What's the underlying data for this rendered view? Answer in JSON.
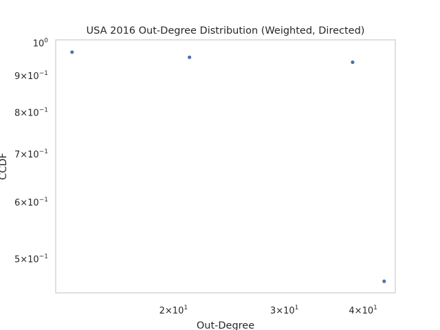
{
  "chart_data": {
    "type": "scatter",
    "title": "USA 2016 Out-Degree Distribution (Weighted, Directed)",
    "xlabel": "Out-Degree",
    "ylabel": "CCDF",
    "x_scale": "log",
    "y_scale": "log",
    "grid": false,
    "xlim": [
      13,
      45
    ],
    "ylim": [
      0.448,
      1.01
    ],
    "x_ticks": [
      {
        "value": 20,
        "mantissa": "2",
        "base": "10",
        "exp": "1"
      },
      {
        "value": 30,
        "mantissa": "3",
        "base": "10",
        "exp": "1"
      },
      {
        "value": 40,
        "mantissa": "4",
        "base": "10",
        "exp": "1"
      }
    ],
    "y_ticks": [
      {
        "value": 0.5,
        "mantissa": "5",
        "base": "10",
        "exp": "−1"
      },
      {
        "value": 0.6,
        "mantissa": "6",
        "base": "10",
        "exp": "−1"
      },
      {
        "value": 0.7,
        "mantissa": "7",
        "base": "10",
        "exp": "−1"
      },
      {
        "value": 0.8,
        "mantissa": "8",
        "base": "10",
        "exp": "−1"
      },
      {
        "value": 0.9,
        "mantissa": "9",
        "base": "10",
        "exp": "−1"
      },
      {
        "value": 1.0,
        "mantissa": "",
        "base": "10",
        "exp": "0"
      }
    ],
    "series": [
      {
        "x": [
          13.8,
          21.2,
          38.5,
          43.2
        ],
        "y": [
          0.971,
          0.955,
          0.94,
          0.465
        ]
      }
    ],
    "colors": {
      "marker": "#4c72b0",
      "frame": "#cccccc",
      "text": "#262626"
    }
  }
}
